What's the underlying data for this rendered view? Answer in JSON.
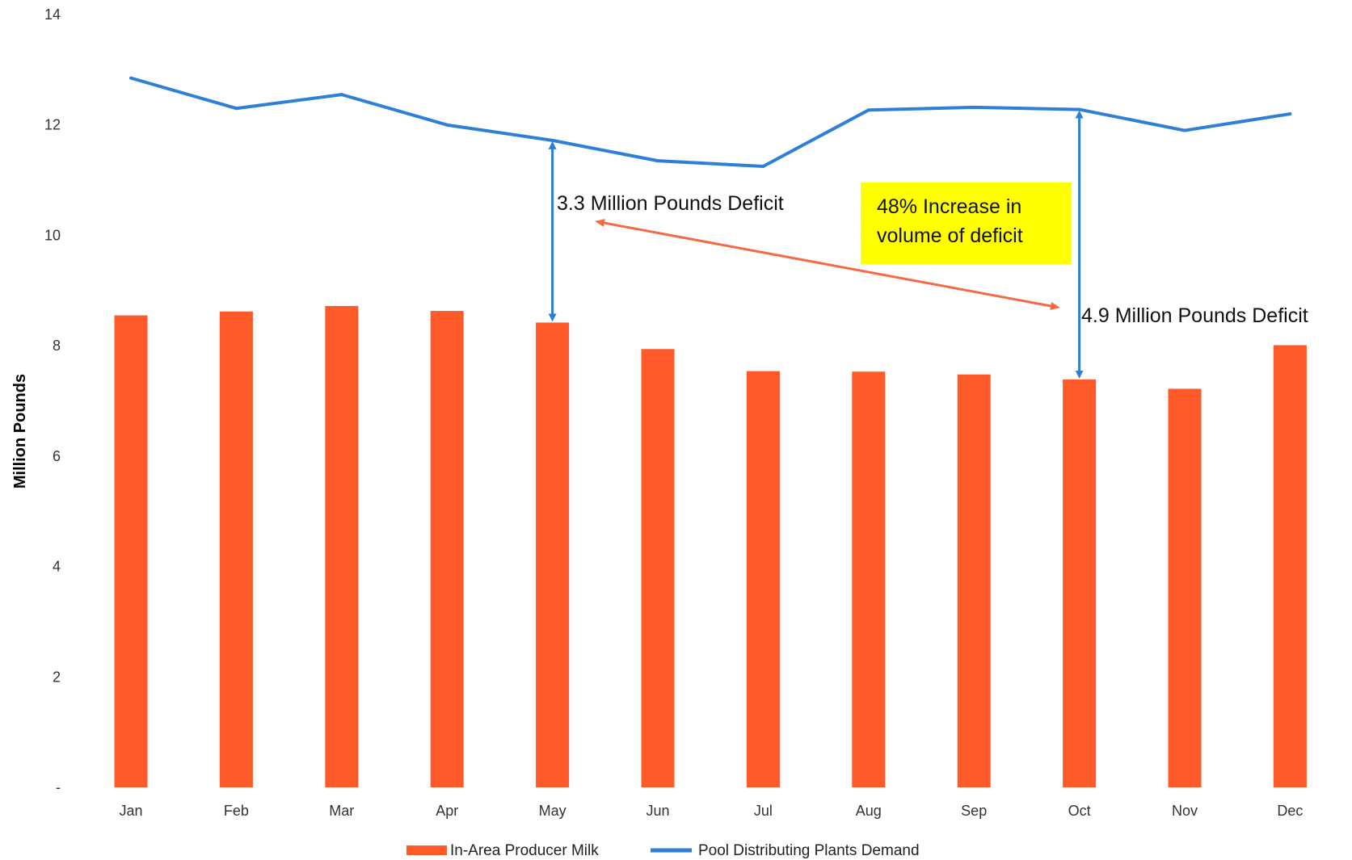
{
  "chart_data": {
    "type": "bar",
    "categories": [
      "Jan",
      "Feb",
      "Mar",
      "Apr",
      "May",
      "Jun",
      "Jul",
      "Aug",
      "Sep",
      "Oct",
      "Nov",
      "Dec"
    ],
    "series": [
      {
        "name": "In-Area Producer Milk",
        "type": "bar",
        "color": "#fe5a2a",
        "values": [
          8.55,
          8.62,
          8.72,
          8.63,
          8.42,
          7.94,
          7.54,
          7.53,
          7.48,
          7.39,
          7.22,
          8.01
        ]
      },
      {
        "name": "Pool Distributing Plants Demand",
        "type": "line",
        "color": "#2e7fd8",
        "values": [
          12.85,
          12.3,
          12.55,
          12.0,
          11.72,
          11.35,
          11.25,
          12.27,
          12.32,
          12.28,
          11.9,
          12.2
        ]
      }
    ],
    "ylabel": "Million Pounds",
    "ylim": [
      0,
      14
    ],
    "yticks": [
      "-",
      "2",
      "4",
      "6",
      "8",
      "10",
      "12",
      "14"
    ],
    "grid": false,
    "legend": "bottom",
    "annotations": {
      "deficit_may": "3.3 Million Pounds Deficit",
      "deficit_oct": "4.9 Million Pounds Deficit",
      "increase_line1": "48% Increase in",
      "increase_line2": "volume of deficit",
      "increase_box_color": "#ffff00",
      "arrow_color": "#f46a45",
      "deficit_arrow_color": "#2e7fd8"
    }
  }
}
